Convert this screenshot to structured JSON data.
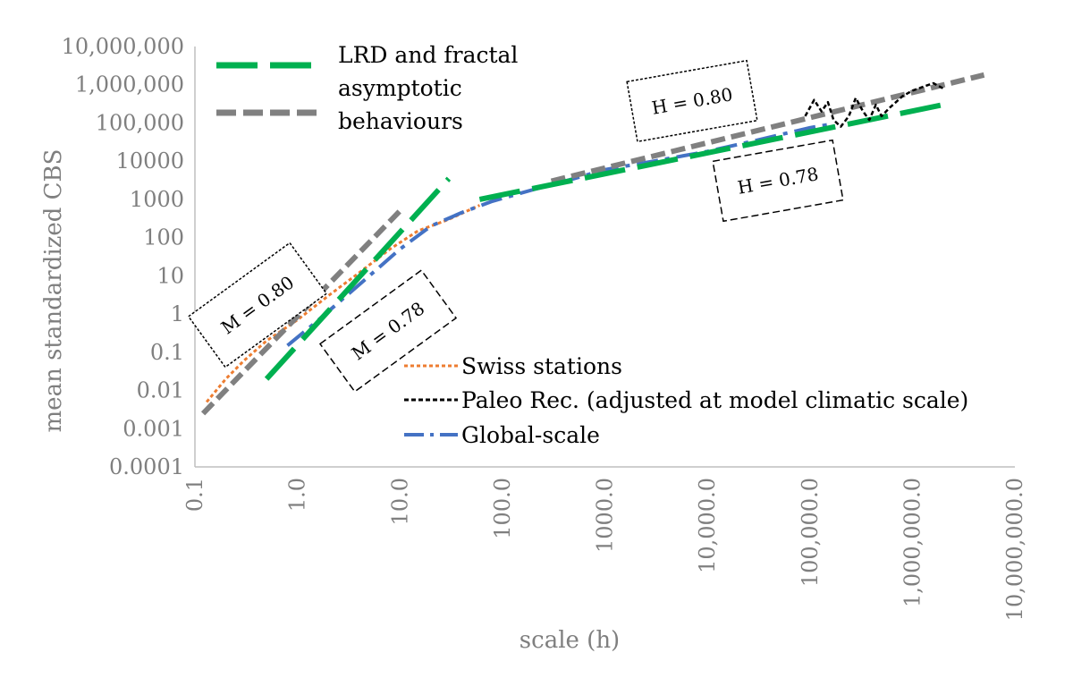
{
  "chart_data": {
    "type": "line",
    "xlabel": "scale (h)",
    "ylabel": "mean standardized CBS",
    "x_scale": "log",
    "y_scale": "log",
    "xlim": [
      0.1,
      10000000
    ],
    "ylim": [
      0.0001,
      10000000
    ],
    "x_tick_labels": [
      "0.1",
      "1.0",
      "10.0",
      "100.0",
      "1000.0",
      "10,000.0",
      "100,000.0",
      "1,000,000.0",
      "10,000,000.0"
    ],
    "y_tick_labels": [
      "0.0001",
      "0.001",
      "0.01",
      "0.1",
      "1",
      "10",
      "100",
      "1000",
      "10000",
      "100,000",
      "1,000,000",
      "10,000,000"
    ],
    "grid": false,
    "legend_top": [
      {
        "label": "LRD and fractal asymptotic behaviours",
        "color": "#00b050"
      },
      {
        "label": "",
        "color": "#808080"
      }
    ],
    "legend_bottom": [
      {
        "label": "Swiss stations",
        "color": "#ed7d31"
      },
      {
        "label": "Paleo Rec. (adjusted at model climatic scale)",
        "color": "#000000"
      },
      {
        "label": "Global-scale",
        "color": "#4472c4"
      }
    ],
    "annotations": [
      {
        "text": "M = 0.80"
      },
      {
        "text": "M = 0.78"
      },
      {
        "text": "H = 0.80"
      },
      {
        "text": "H = 0.78"
      }
    ],
    "series": [
      {
        "name": "Swiss stations",
        "color": "#ed7d31",
        "x": [
          0.13,
          0.2,
          0.3,
          0.5,
          1,
          2,
          4,
          8,
          15,
          30,
          60
        ],
        "y": [
          0.005,
          0.02,
          0.06,
          0.2,
          0.7,
          3,
          12,
          50,
          150,
          300,
          700
        ]
      },
      {
        "name": "Global-scale",
        "color": "#4472c4",
        "x": [
          0.8,
          1.5,
          3,
          6,
          10,
          20,
          40,
          80,
          200,
          500,
          1000,
          3000,
          10000,
          30000,
          100000,
          150000
        ],
        "y": [
          0.15,
          0.6,
          3,
          15,
          50,
          200,
          450,
          900,
          1800,
          3500,
          6000,
          10000,
          18000,
          35000,
          75000,
          90000
        ]
      },
      {
        "name": "Paleo Rec. (adjusted at model climatic scale)",
        "color": "#000000",
        "x": [
          90000,
          110000,
          130000,
          150000,
          170000,
          200000,
          240000,
          280000,
          330000,
          380000,
          440000,
          500000,
          600000,
          800000,
          1000000,
          1300000,
          1600000,
          2000000
        ],
        "y": [
          150000,
          400000,
          200000,
          350000,
          120000,
          80000,
          150000,
          450000,
          200000,
          120000,
          300000,
          150000,
          250000,
          500000,
          700000,
          900000,
          1100000,
          800000
        ]
      },
      {
        "name": "",
        "color": "#00b050",
        "x": [
          0.5,
          30
        ],
        "y": [
          0.02,
          3500
        ]
      },
      {
        "name": "",
        "color": "#00b050",
        "x": [
          60,
          2000000
        ],
        "y": [
          1000,
          300000
        ]
      },
      {
        "name": "",
        "color": "#808080",
        "x": [
          0.12,
          10
        ],
        "y": [
          0.0025,
          500
        ]
      },
      {
        "name": "",
        "color": "#808080",
        "x": [
          300,
          5000000
        ],
        "y": [
          3000,
          1800000
        ]
      }
    ]
  }
}
